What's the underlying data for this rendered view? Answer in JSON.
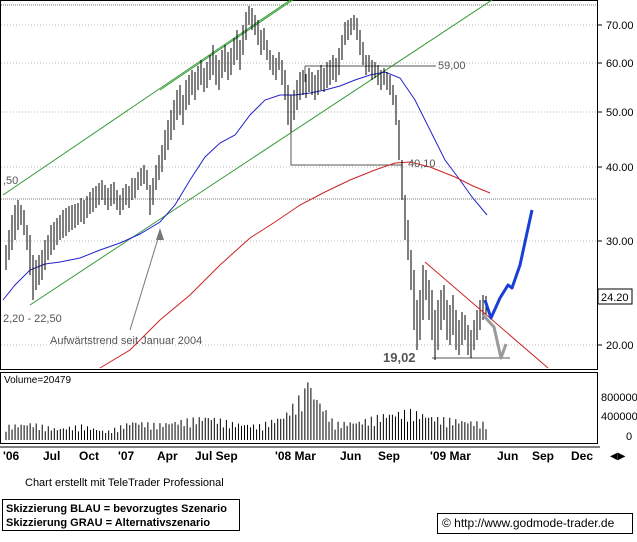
{
  "chart_data": {
    "type": "candlestick",
    "price_axis": {
      "ticks": [
        20,
        30,
        40,
        50,
        60,
        70
      ],
      "tick_labels": [
        "20.00",
        "30.00",
        "40.00",
        "50.00",
        "60.00",
        "70.00"
      ],
      "scale": "log",
      "range": [
        17,
        77
      ]
    },
    "volume_axis": {
      "ticks": [
        0,
        400000,
        800000
      ],
      "tick_labels": [
        "0",
        "400000",
        "800000"
      ],
      "label": "Volume=20479"
    },
    "x_axis": {
      "labels": [
        "'06",
        "Jul",
        "Oct",
        "'07",
        "Apr",
        "Jul Sep",
        "'08 Mar",
        "Jun",
        "Sep",
        "'09 Mar",
        "Jun",
        "Sep",
        "Dec"
      ]
    },
    "last_price": "24.20",
    "price_series": [
      {
        "date": "2006-04",
        "close": 25
      },
      {
        "date": "2006-05",
        "close": 33
      },
      {
        "date": "2006-06",
        "close": 29
      },
      {
        "date": "2006-07",
        "close": 24
      },
      {
        "date": "2006-08",
        "close": 25
      },
      {
        "date": "2006-09",
        "close": 27
      },
      {
        "date": "2006-10",
        "close": 29
      },
      {
        "date": "2006-11",
        "close": 31
      },
      {
        "date": "2006-12",
        "close": 33
      },
      {
        "date": "2007-01",
        "close": 35
      },
      {
        "date": "2007-02",
        "close": 33
      },
      {
        "date": "2007-03",
        "close": 41
      },
      {
        "date": "2007-04",
        "close": 48
      },
      {
        "date": "2007-05",
        "close": 55
      },
      {
        "date": "2007-06",
        "close": 52
      },
      {
        "date": "2007-07",
        "close": 60
      },
      {
        "date": "2007-08",
        "close": 70
      },
      {
        "date": "2007-09",
        "close": 63
      },
      {
        "date": "2007-10",
        "close": 58
      },
      {
        "date": "2007-11",
        "close": 60
      },
      {
        "date": "2007-12",
        "close": 57
      },
      {
        "date": "2008-01",
        "close": 48
      },
      {
        "date": "2008-02",
        "close": 53
      },
      {
        "date": "2008-03",
        "close": 54
      },
      {
        "date": "2008-04",
        "close": 57
      },
      {
        "date": "2008-05",
        "close": 63
      },
      {
        "date": "2008-06",
        "close": 68
      },
      {
        "date": "2008-07",
        "close": 60
      },
      {
        "date": "2008-08",
        "close": 57
      },
      {
        "date": "2008-09",
        "close": 44
      },
      {
        "date": "2008-10",
        "close": 26
      },
      {
        "date": "2008-11",
        "close": 22
      },
      {
        "date": "2008-12",
        "close": 24
      },
      {
        "date": "2009-01",
        "close": 20
      },
      {
        "date": "2009-02",
        "close": 21
      },
      {
        "date": "2009-03",
        "close": 20
      },
      {
        "date": "2009-04",
        "close": 24.2
      }
    ],
    "volume_series": [
      {
        "date": "2006-04",
        "volume": 250000
      },
      {
        "date": "2006-06",
        "volume": 300000
      },
      {
        "date": "2006-08",
        "volume": 200000
      },
      {
        "date": "2006-10",
        "volume": 260000
      },
      {
        "date": "2006-12",
        "volume": 150000
      },
      {
        "date": "2007-02",
        "volume": 330000
      },
      {
        "date": "2007-04",
        "volume": 280000
      },
      {
        "date": "2007-06",
        "volume": 350000
      },
      {
        "date": "2007-08",
        "volume": 420000
      },
      {
        "date": "2007-10",
        "volume": 300000
      },
      {
        "date": "2007-12",
        "volume": 260000
      },
      {
        "date": "2008-02",
        "volume": 430000
      },
      {
        "date": "2008-03",
        "volume": 960000
      },
      {
        "date": "2008-05",
        "volume": 300000
      },
      {
        "date": "2008-07",
        "volume": 330000
      },
      {
        "date": "2008-09",
        "volume": 460000
      },
      {
        "date": "2008-10",
        "volume": 520000
      },
      {
        "date": "2008-12",
        "volume": 400000
      },
      {
        "date": "2009-02",
        "volume": 350000
      },
      {
        "date": "2009-04",
        "volume": 300000
      }
    ],
    "annotations": {
      "level_5900": "59,00",
      "level_4010": "40,10",
      "low_1902": "19,02",
      "level_left": ",50",
      "range_label": "2,20 - 22,50",
      "trend_label": "Aufwärtstrend seit Januar 2004"
    },
    "scenarios": {
      "blue": "bevorzugtes Szenario",
      "grey": "Alternativszenario"
    },
    "colors": {
      "trend_channel": "#339933",
      "ma_short": "#2222cc",
      "ma_long": "#cc2222",
      "scenario_blue": "#1a3fd6",
      "scenario_grey": "#9a9a9a",
      "levels": "#555555",
      "candles": "#000000"
    }
  },
  "footer": {
    "credit": "Chart erstellt mit TeleTrader Professional",
    "legend_line1": "Skizzierung BLAU = bevorzugtes Szenario",
    "legend_line2": "Skizzierung GRAU = Alternativszenario",
    "source": "© http://www.godmode-trader.de"
  }
}
